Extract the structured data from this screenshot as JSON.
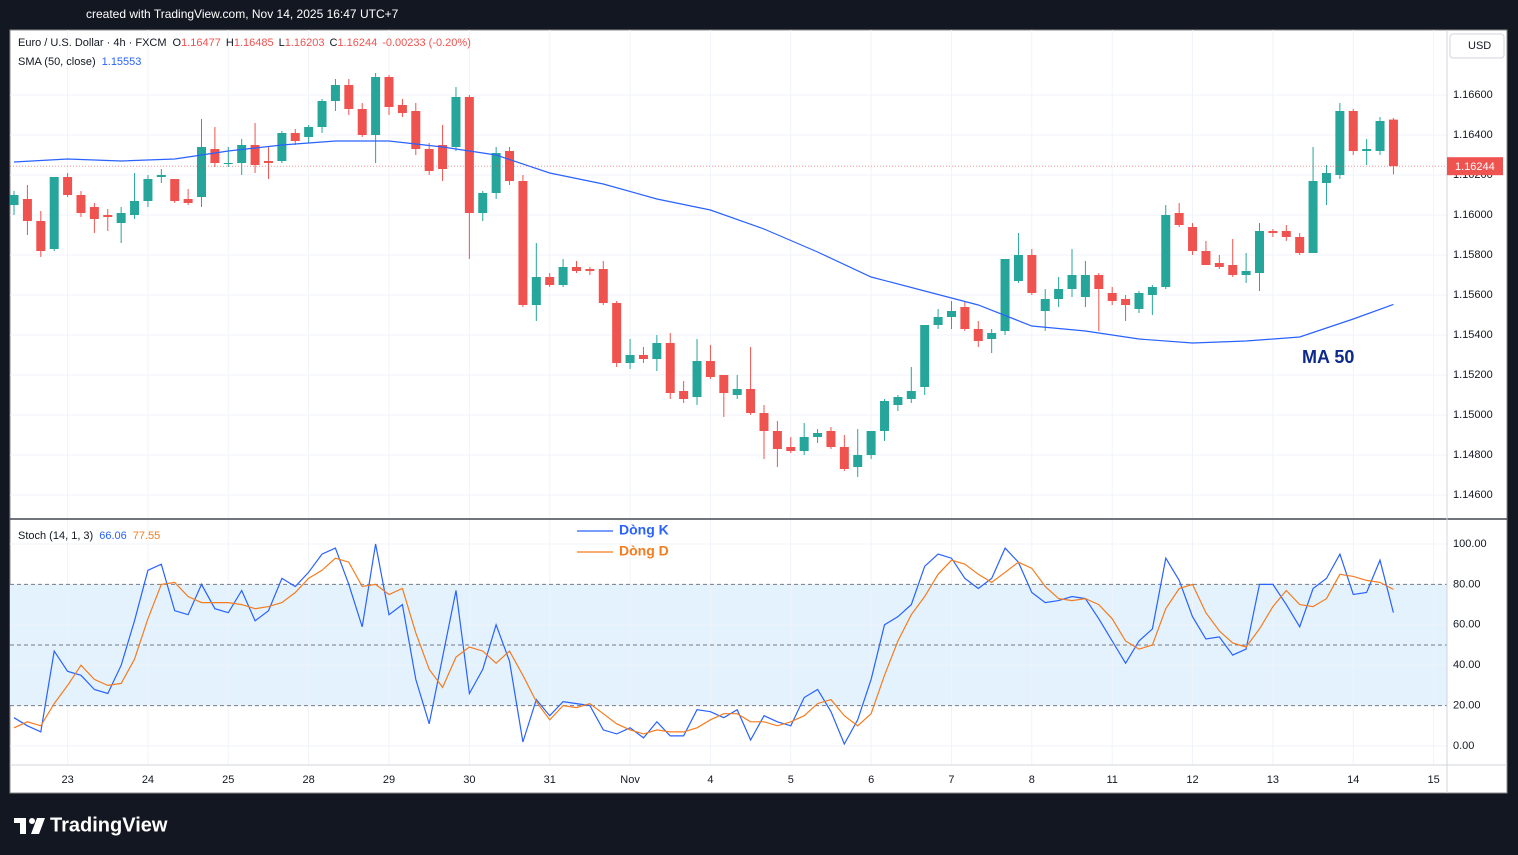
{
  "header": {
    "watermark": "created with TradingView.com, Nov 14, 2025 16:47 UTC+7",
    "currency": "USD",
    "logo": "TradingView"
  },
  "chart_data": [
    {
      "type": "candlestick",
      "title": "Euro / U.S. Dollar · 4h · FXCM",
      "ohlc_prefixes": [
        "O",
        "H",
        "L",
        "C"
      ],
      "change": "-0.00233 (-0.20%)",
      "up_color": "#26a69a",
      "down_color": "#ef5350",
      "open": [
        1.1605,
        1.1608,
        1.1597,
        1.1583,
        1.1619,
        1.161,
        1.1604,
        1.16,
        1.1596,
        1.16,
        1.1607,
        1.1619,
        1.1618,
        1.1608,
        1.1609,
        1.1633,
        1.1626,
        1.1626,
        1.1635,
        1.1627,
        1.1627,
        1.1641,
        1.1639,
        1.1644,
        1.1657,
        1.1665,
        1.1653,
        1.164,
        1.1669,
        1.1655,
        1.1652,
        1.1633,
        1.1635,
        1.1634,
        1.1659,
        1.1601,
        1.1611,
        1.1632,
        1.1617,
        1.1555,
        1.1569,
        1.1565,
        1.1574,
        1.1573,
        1.1573,
        1.1556,
        1.1526,
        1.153,
        1.1528,
        1.1536,
        1.1512,
        1.1509,
        1.1527,
        1.152,
        1.151,
        1.1513,
        1.1501,
        1.1492,
        1.1484,
        1.1482,
        1.1489,
        1.1492,
        1.1484,
        1.1474,
        1.148,
        1.1492,
        1.1505,
        1.1508,
        1.1514,
        1.1545,
        1.1549,
        1.1554,
        1.1543,
        1.1538,
        1.1542,
        1.1567,
        1.158,
        1.1552,
        1.1558,
        1.1563,
        1.1559,
        1.157,
        1.1561,
        1.1558,
        1.1553,
        1.156,
        1.1564,
        1.1601,
        1.1594,
        1.1582,
        1.1576,
        1.1575,
        1.157,
        1.1571,
        1.1592,
        1.1592,
        1.1589,
        1.1581,
        1.1616,
        1.162,
        1.1652,
        1.1632,
        1.1632,
        1.16477
      ],
      "high": [
        1.1612,
        1.1615,
        1.1602,
        1.1619,
        1.1621,
        1.1612,
        1.1606,
        1.1603,
        1.1604,
        1.1621,
        1.162,
        1.1623,
        1.1618,
        1.1613,
        1.1648,
        1.1644,
        1.1634,
        1.1638,
        1.1646,
        1.1634,
        1.1642,
        1.1643,
        1.1645,
        1.1658,
        1.1668,
        1.1668,
        1.1656,
        1.1671,
        1.167,
        1.1658,
        1.1656,
        1.1636,
        1.1645,
        1.1664,
        1.166,
        1.1612,
        1.1634,
        1.1634,
        1.162,
        1.1586,
        1.1571,
        1.1578,
        1.1577,
        1.1574,
        1.1577,
        1.1557,
        1.1538,
        1.1534,
        1.154,
        1.1541,
        1.1517,
        1.1538,
        1.1535,
        1.152,
        1.152,
        1.1534,
        1.1505,
        1.1497,
        1.1489,
        1.1496,
        1.1493,
        1.1494,
        1.149,
        1.1493,
        1.1492,
        1.1508,
        1.151,
        1.1524,
        1.1545,
        1.1553,
        1.1557,
        1.1557,
        1.1547,
        1.1543,
        1.1578,
        1.1591,
        1.1583,
        1.1563,
        1.1569,
        1.1583,
        1.1577,
        1.1571,
        1.1564,
        1.156,
        1.1562,
        1.1565,
        1.1605,
        1.1606,
        1.1596,
        1.1587,
        1.158,
        1.1588,
        1.1581,
        1.1596,
        1.1593,
        1.1595,
        1.1591,
        1.1634,
        1.1625,
        1.1656,
        1.1653,
        1.1638,
        1.1649,
        1.16485
      ],
      "low": [
        1.16,
        1.159,
        1.1579,
        1.1582,
        1.1609,
        1.1599,
        1.1591,
        1.1592,
        1.1586,
        1.1598,
        1.1604,
        1.1616,
        1.1606,
        1.1605,
        1.1604,
        1.1624,
        1.1624,
        1.162,
        1.1621,
        1.1618,
        1.1626,
        1.1635,
        1.1636,
        1.1641,
        1.1652,
        1.165,
        1.1639,
        1.1626,
        1.165,
        1.1649,
        1.163,
        1.162,
        1.1617,
        1.1632,
        1.1578,
        1.1597,
        1.1608,
        1.1615,
        1.1554,
        1.1547,
        1.1564,
        1.1564,
        1.1571,
        1.157,
        1.1555,
        1.1524,
        1.1523,
        1.1526,
        1.1522,
        1.1508,
        1.1506,
        1.1505,
        1.1518,
        1.1499,
        1.1508,
        1.15,
        1.1478,
        1.1474,
        1.1481,
        1.148,
        1.1486,
        1.1483,
        1.1472,
        1.1469,
        1.1478,
        1.1487,
        1.1502,
        1.1506,
        1.151,
        1.1543,
        1.1543,
        1.1542,
        1.1534,
        1.1531,
        1.154,
        1.1566,
        1.156,
        1.1542,
        1.1554,
        1.1559,
        1.1554,
        1.1542,
        1.1555,
        1.1547,
        1.1551,
        1.155,
        1.1563,
        1.1594,
        1.158,
        1.1575,
        1.1573,
        1.1569,
        1.1566,
        1.1562,
        1.1589,
        1.1587,
        1.158,
        1.1581,
        1.1605,
        1.1618,
        1.163,
        1.1625,
        1.163,
        1.16203
      ],
      "close": [
        1.161,
        1.1597,
        1.1582,
        1.1619,
        1.161,
        1.1601,
        1.1598,
        1.1599,
        1.1601,
        1.1607,
        1.1618,
        1.162,
        1.1607,
        1.1606,
        1.1634,
        1.1626,
        1.1626,
        1.1635,
        1.1625,
        1.1626,
        1.1641,
        1.1637,
        1.1644,
        1.1657,
        1.1665,
        1.1653,
        1.164,
        1.1669,
        1.1654,
        1.1651,
        1.1633,
        1.1622,
        1.1623,
        1.1659,
        1.1601,
        1.1611,
        1.1631,
        1.1617,
        1.1555,
        1.1569,
        1.1565,
        1.1574,
        1.1572,
        1.1572,
        1.1556,
        1.1526,
        1.153,
        1.1528,
        1.1536,
        1.1511,
        1.1508,
        1.1527,
        1.1519,
        1.1511,
        1.1513,
        1.1501,
        1.1492,
        1.1483,
        1.1482,
        1.1489,
        1.1491,
        1.1484,
        1.1473,
        1.148,
        1.1492,
        1.1507,
        1.1509,
        1.1512,
        1.1545,
        1.1549,
        1.1552,
        1.1543,
        1.1537,
        1.1541,
        1.1578,
        1.158,
        1.1561,
        1.1558,
        1.1563,
        1.157,
        1.157,
        1.1563,
        1.1557,
        1.1555,
        1.1561,
        1.1564,
        1.16,
        1.1595,
        1.1582,
        1.1575,
        1.1574,
        1.157,
        1.1572,
        1.1592,
        1.1591,
        1.1589,
        1.1581,
        1.1617,
        1.1621,
        1.1652,
        1.1632,
        1.1633,
        1.1647,
        1.16244
      ],
      "overlay": {
        "name": "SMA (50, close)",
        "color": "#2962ff",
        "x": [
          0,
          4,
          8,
          12,
          16,
          20,
          24,
          28,
          32,
          36,
          40,
          44,
          48,
          52,
          56,
          60,
          64,
          68,
          72,
          76,
          80,
          84,
          88,
          92,
          96,
          100,
          103
        ],
        "values": [
          1.16265,
          1.1628,
          1.1627,
          1.1628,
          1.1632,
          1.1635,
          1.1637,
          1.1637,
          1.1634,
          1.163,
          1.1621,
          1.16155,
          1.1608,
          1.16025,
          1.1593,
          1.15815,
          1.1569,
          1.1562,
          1.1555,
          1.15445,
          1.1542,
          1.1538,
          1.1536,
          1.1537,
          1.1539,
          1.1548,
          1.15553
        ]
      },
      "annotation": "MA 50",
      "annotation_color": "#0d2a8a",
      "xlim": [
        -0.3,
        107
      ],
      "ylim": [
        1.14485,
        1.16925
      ],
      "yticks": [
        {
          "value": 1.146,
          "label": "1.14600"
        },
        {
          "value": 1.148,
          "label": "1.14800"
        },
        {
          "value": 1.15,
          "label": "1.15000"
        },
        {
          "value": 1.152,
          "label": "1.15200"
        },
        {
          "value": 1.154,
          "label": "1.15400"
        },
        {
          "value": 1.156,
          "label": "1.15600"
        },
        {
          "value": 1.158,
          "label": "1.15800"
        },
        {
          "value": 1.16,
          "label": "1.16000"
        },
        {
          "value": 1.162,
          "label": "1.16200"
        },
        {
          "value": 1.164,
          "label": "1.16400"
        },
        {
          "value": 1.166,
          "label": "1.16600"
        }
      ],
      "grid": true
    },
    {
      "type": "line",
      "title": "Stoch (14, 1, 3)",
      "series": [
        {
          "name": "Dòng K",
          "color": "#2962ff",
          "values": [
            14,
            10,
            7,
            47,
            37,
            35,
            28,
            26,
            40,
            62,
            87,
            90,
            67,
            65,
            80,
            68,
            66,
            77,
            62,
            67,
            83,
            79,
            86,
            95,
            98,
            80,
            59,
            100,
            65,
            70,
            33,
            11,
            44,
            77,
            26,
            38,
            60,
            42,
            2,
            23,
            15,
            22,
            21,
            20,
            8,
            6,
            9,
            4,
            12,
            5,
            5,
            18,
            17,
            14,
            18,
            3,
            15,
            12,
            10,
            24,
            28,
            17,
            1,
            13,
            33,
            60,
            64,
            70,
            89,
            95,
            93,
            83,
            78,
            83,
            98,
            91,
            76,
            71,
            72,
            74,
            73,
            63,
            52,
            41,
            52,
            58,
            93,
            82,
            64,
            53,
            54,
            45,
            48,
            80,
            80,
            70,
            59,
            78,
            83,
            95,
            75,
            76,
            92,
            66.06
          ]
        },
        {
          "name": "Dòng D",
          "color": "#f57c1f",
          "values": [
            9,
            12,
            10,
            21,
            30,
            40,
            33,
            30,
            31,
            43,
            63,
            80,
            81,
            74,
            71,
            71,
            71,
            70,
            68,
            69,
            71,
            76,
            83,
            87,
            93,
            91,
            79,
            80,
            75,
            78,
            56,
            38,
            29,
            44,
            49,
            47,
            41,
            47,
            35,
            22,
            13,
            20,
            19,
            21,
            16,
            11,
            8,
            6,
            8,
            7,
            7,
            9,
            13,
            16,
            16,
            12,
            12,
            10,
            12,
            15,
            21,
            23,
            15,
            10,
            16,
            35,
            52,
            65,
            74,
            85,
            92,
            90,
            85,
            81,
            86,
            91,
            88,
            79,
            73,
            72,
            73,
            70,
            63,
            52,
            48,
            50,
            68,
            78,
            80,
            66,
            57,
            51,
            49,
            58,
            69,
            77,
            70,
            69,
            73,
            85,
            84,
            82,
            81,
            77.55
          ]
        }
      ],
      "bands": [
        20,
        50,
        80
      ],
      "band_fill": "#e3f2fd",
      "xlim": [
        -0.3,
        107
      ],
      "ylim": [
        -9.4,
        111.9
      ],
      "yticks": [
        {
          "value": 0,
          "label": "0.00"
        },
        {
          "value": 20,
          "label": "20.00"
        },
        {
          "value": 40,
          "label": "40.00"
        },
        {
          "value": 60,
          "label": "60.00"
        },
        {
          "value": 80,
          "label": "80.00"
        },
        {
          "value": 100,
          "label": "100.00"
        }
      ],
      "xticks": [
        {
          "value": 4,
          "label": "23"
        },
        {
          "value": 10,
          "label": "24"
        },
        {
          "value": 16,
          "label": "25"
        },
        {
          "value": 22,
          "label": "28"
        },
        {
          "value": 28,
          "label": "29"
        },
        {
          "value": 34,
          "label": "30"
        },
        {
          "value": 40,
          "label": "31"
        },
        {
          "value": 46,
          "label": "Nov"
        },
        {
          "value": 52,
          "label": "4"
        },
        {
          "value": 58,
          "label": "5"
        },
        {
          "value": 64,
          "label": "6"
        },
        {
          "value": 70,
          "label": "7"
        },
        {
          "value": 76,
          "label": "8"
        },
        {
          "value": 82,
          "label": "11"
        },
        {
          "value": 88,
          "label": "12"
        },
        {
          "value": 94,
          "label": "13"
        },
        {
          "value": 100,
          "label": "14"
        },
        {
          "value": 106,
          "label": "15"
        }
      ],
      "grid": true
    }
  ]
}
